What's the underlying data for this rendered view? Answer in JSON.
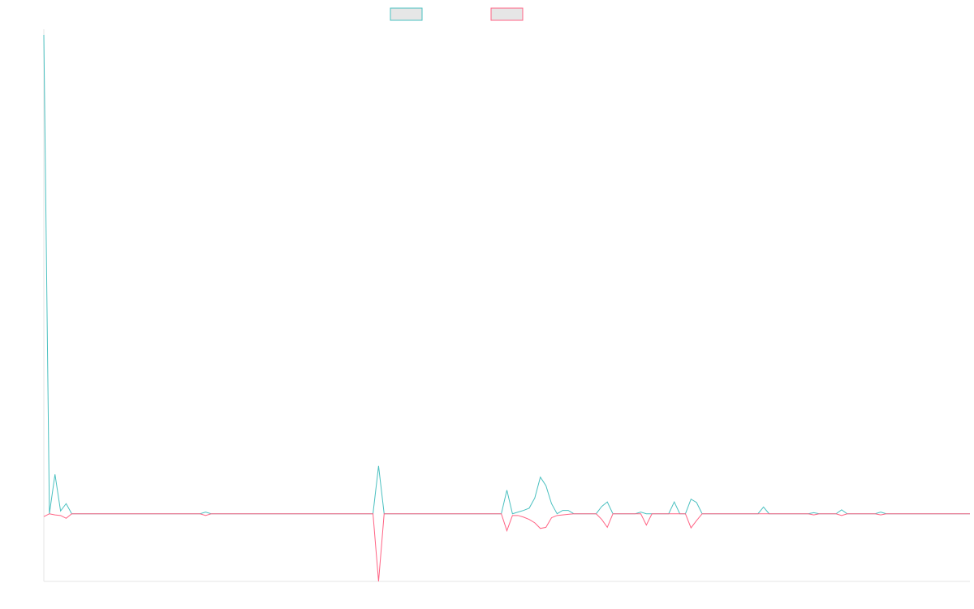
{
  "chart_data": {
    "type": "line",
    "title": "",
    "xlabel": "",
    "ylabel": "",
    "grid": false,
    "legend": "top-center",
    "ylim": [
      -12,
      86
    ],
    "series": [
      {
        "color": "#4bc0c0",
        "legend_fill": "#e6e6e6",
        "values": [
          85,
          0,
          7,
          0.5,
          1.8,
          0,
          0,
          0,
          0,
          0,
          0,
          0,
          0,
          0,
          0,
          0,
          0,
          0,
          0,
          0,
          0,
          0,
          0,
          0,
          0,
          0,
          0,
          0,
          0,
          0.3,
          0,
          0,
          0,
          0,
          0,
          0,
          0,
          0,
          0,
          0,
          0,
          0,
          0,
          0,
          0,
          0,
          0,
          0,
          0,
          0,
          0,
          0,
          0,
          0,
          0,
          0,
          0,
          0,
          0,
          0,
          8.5,
          0,
          0,
          0,
          0,
          0,
          0,
          0,
          0,
          0,
          0,
          0,
          0,
          0,
          0,
          0,
          0,
          0,
          0,
          0,
          0,
          0,
          0,
          4.2,
          0,
          0.3,
          0.6,
          1,
          2.8,
          6.5,
          5,
          1.8,
          0,
          0.6,
          0.6,
          0,
          0,
          0,
          0,
          0,
          1.3,
          2.1,
          0,
          0,
          0,
          0,
          0,
          0.3,
          0,
          0,
          0,
          0,
          0,
          2.1,
          0,
          0,
          2.6,
          2,
          0,
          0,
          0,
          0,
          0,
          0,
          0,
          0,
          0,
          0,
          0,
          1.2,
          0,
          0,
          0,
          0,
          0,
          0,
          0,
          0,
          0.2,
          0,
          0,
          0,
          0,
          0.7,
          0,
          0,
          0,
          0,
          0,
          0,
          0.3,
          0,
          0,
          0,
          0,
          0,
          0,
          0,
          0,
          0,
          0,
          0,
          0,
          0,
          0,
          0,
          0
        ]
      },
      {
        "color": "#ff6384",
        "legend_fill": "#e6e6e6",
        "values": [
          -0.5,
          0,
          -0.2,
          -0.3,
          -0.8,
          0,
          0,
          0,
          0,
          0,
          0,
          0,
          0,
          0,
          0,
          0,
          0,
          0,
          0,
          0,
          0,
          0,
          0,
          0,
          0,
          0,
          0,
          0,
          0,
          -0.3,
          0,
          0,
          0,
          0,
          0,
          0,
          0,
          0,
          0,
          0,
          0,
          0,
          0,
          0,
          0,
          0,
          0,
          0,
          0,
          0,
          0,
          0,
          0,
          0,
          0,
          0,
          0,
          0,
          0,
          0,
          -12,
          0,
          0,
          0,
          0,
          0,
          0,
          0,
          0,
          0,
          0,
          0,
          0,
          0,
          0,
          0,
          0,
          0,
          0,
          0,
          0,
          0,
          0,
          -3,
          -0.3,
          -0.3,
          -0.6,
          -1,
          -1.6,
          -2.6,
          -2.4,
          -0.7,
          -0.3,
          -0.2,
          -0.1,
          0,
          0,
          0,
          0,
          0,
          -1,
          -2.4,
          0,
          0,
          0,
          0,
          0,
          0,
          -2,
          0,
          0,
          0,
          0,
          0,
          0,
          0,
          -2.5,
          -1.2,
          0,
          0,
          0,
          0,
          0,
          0,
          0,
          0,
          0,
          0,
          0,
          0,
          0,
          0,
          0,
          0,
          0,
          0,
          0,
          0,
          -0.2,
          0,
          0,
          0,
          0,
          -0.3,
          0,
          0,
          0,
          0,
          0,
          0,
          -0.2,
          0,
          0,
          0,
          0,
          0,
          0,
          0,
          0,
          0,
          0,
          0,
          0,
          0,
          0,
          0,
          0
        ]
      }
    ]
  }
}
